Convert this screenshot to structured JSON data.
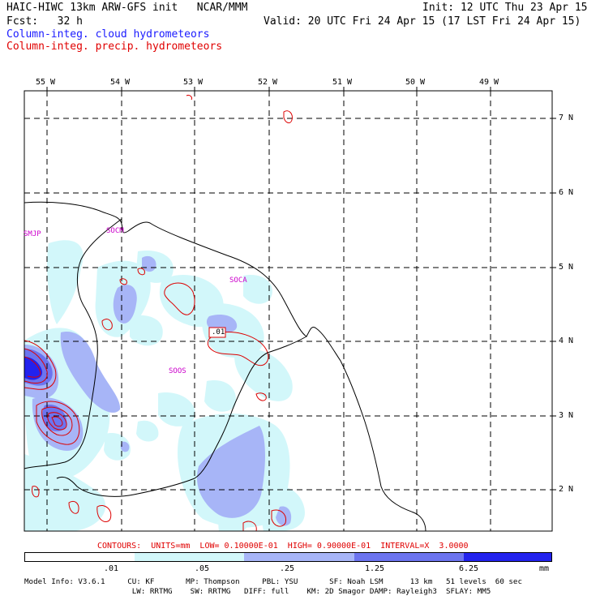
{
  "header": {
    "title": "HAIC-HIWC 13km ARW-GFS init   NCAR/MMM",
    "init": "Init: 12 UTC Thu 23 Apr 15",
    "fcst": "Fcst:   32 h",
    "valid": "Valid: 20 UTC Fri 24 Apr 15 (17 LST Fri 24 Apr 15)",
    "legend_cloud": "Column-integ. cloud hydrometeors",
    "legend_precip": "Column-integ. precip. hydrometeors"
  },
  "map": {
    "lon_labels": [
      "55 W",
      "54 W",
      "53 W",
      "52 W",
      "51 W",
      "50 W",
      "49 W"
    ],
    "lat_labels": [
      "7 N",
      "6 N",
      "5 N",
      "4 N",
      "3 N",
      "2 N"
    ],
    "station_labels": [
      "SMJP",
      "SOCM",
      "SOCA",
      "SOOS"
    ],
    "contour_label": ".01"
  },
  "contour_info": "CONTOURS:  UNITS=mm  LOW= 0.10000E-01  HIGH= 0.90000E-01  INTERVAL=X  3.0000",
  "colorbar": {
    "labels": [
      ".01",
      ".05",
      ".25",
      "1.25",
      "6.25"
    ],
    "units": "mm",
    "colors": [
      "#ffffff",
      "#d2f7fa",
      "#a7b5f7",
      "#6c74ef",
      "#2222ee"
    ]
  },
  "model_info": {
    "line1": "Model Info: V3.6.1     CU: KF       MP: Thompson     PBL: YSU       SF: Noah LSM      13 km   51 levels  60 sec",
    "line2": "                        LW: RRTMG    SW: RRTMG   DIFF: full    KM: 2D Smagor DAMP: Rayleigh3  SFLAY: MM5"
  }
}
